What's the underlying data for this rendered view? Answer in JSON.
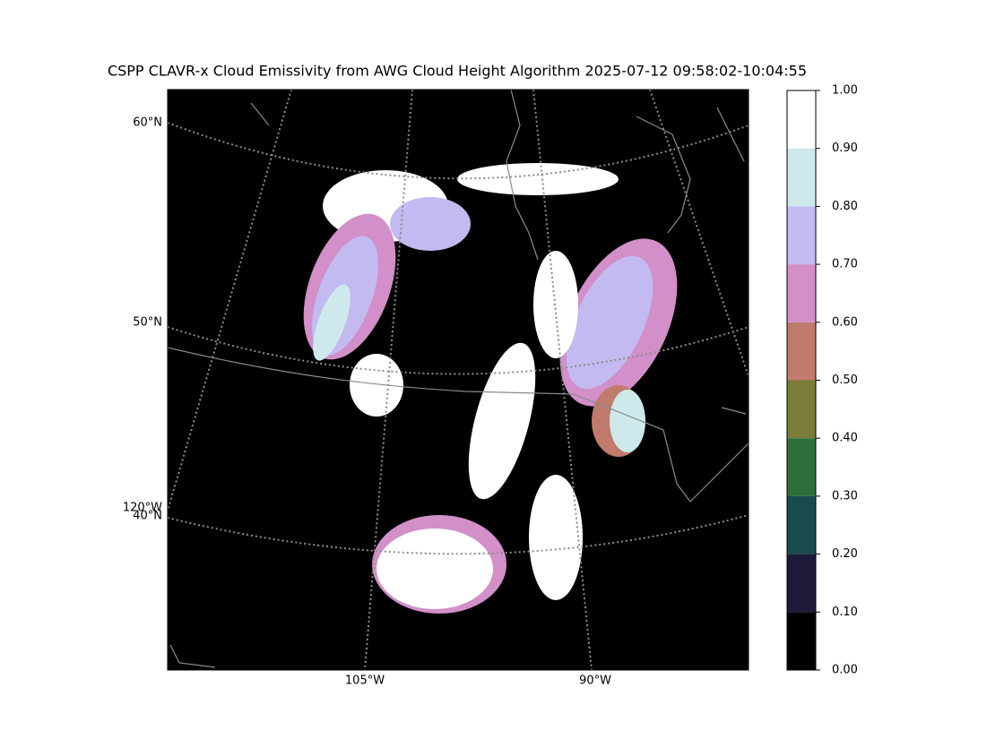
{
  "title": "CSPP CLAVR-x Cloud Emissivity from AWG Cloud Height Algorithm 2025-07-12 09:58:02-10:04:55",
  "map": {
    "lat_labels": [
      "60°N",
      "50°N",
      "40°N"
    ],
    "lon_labels": [
      "120°W",
      "105°W",
      "90°W"
    ]
  },
  "colorbar": {
    "lim": [
      0,
      1
    ],
    "ticks": [
      {
        "value": 0,
        "label": "0.00"
      },
      {
        "value": 0.1,
        "label": "0.10"
      },
      {
        "value": 0.2,
        "label": "0.20"
      },
      {
        "value": 0.3,
        "label": "0.30"
      },
      {
        "value": 0.4,
        "label": "0.40"
      },
      {
        "value": 0.5,
        "label": "0.50"
      },
      {
        "value": 0.6,
        "label": "0.60"
      },
      {
        "value": 0.7,
        "label": "0.70"
      },
      {
        "value": 0.8,
        "label": "0.80"
      },
      {
        "value": 0.9,
        "label": "0.90"
      },
      {
        "value": 1,
        "label": "1.00"
      }
    ],
    "colors": [
      "#000000",
      "#1e1a3a",
      "#1a4a4e",
      "#2e6e3a",
      "#7a7d36",
      "#c07b6c",
      "#d28fc8",
      "#c2baf0",
      "#cde9ec",
      "#ffffff"
    ]
  }
}
